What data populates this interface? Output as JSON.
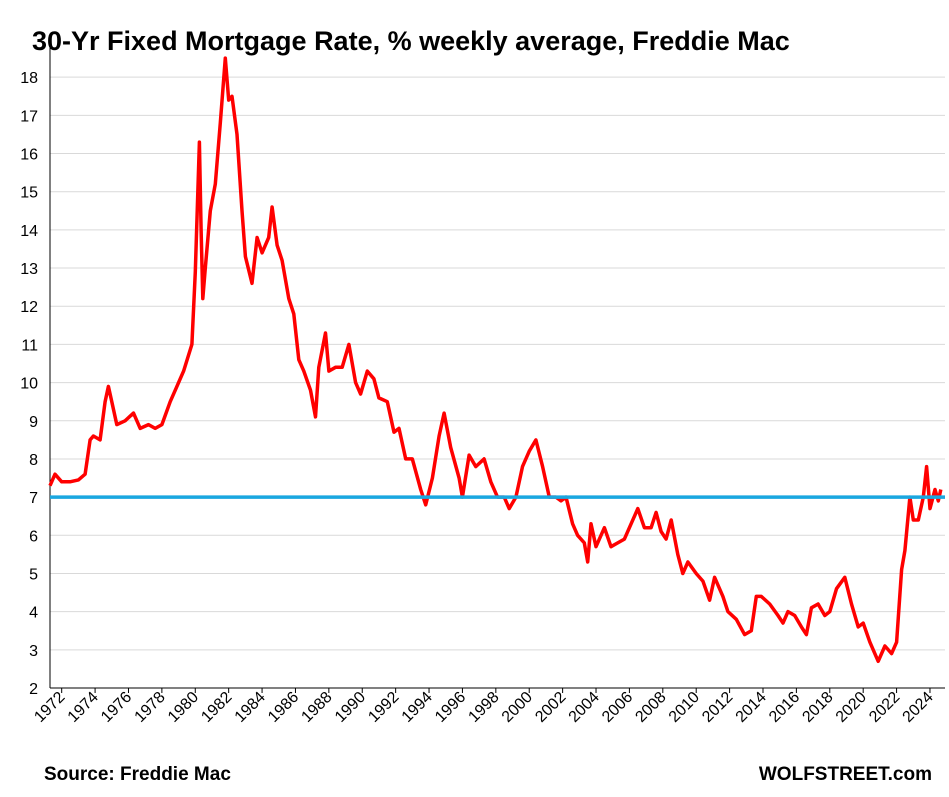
{
  "chart_data": {
    "type": "line",
    "title": "30-Yr Fixed Mortgage Rate, % weekly average, Freddie Mac",
    "source": "Source: Freddie Mac",
    "brand": "WOLFSTREET.com",
    "xlim": [
      1971.3,
      2024.9
    ],
    "xticks": [
      1972,
      1974,
      1976,
      1978,
      1980,
      1982,
      1984,
      1986,
      1988,
      1990,
      1992,
      1994,
      1996,
      1998,
      2000,
      2002,
      2004,
      2006,
      2008,
      2010,
      2012,
      2014,
      2016,
      2018,
      2020,
      2022,
      2024
    ],
    "ylim": [
      2,
      19
    ],
    "yticks": [
      2,
      3,
      4,
      5,
      6,
      7,
      8,
      9,
      10,
      11,
      12,
      13,
      14,
      15,
      16,
      17,
      18
    ],
    "grid": true,
    "reference_line": {
      "value": 7,
      "color": "#1aa7e0"
    },
    "series": [
      {
        "color": "#ff0000",
        "x": [
          1971.3,
          1971.6,
          1972.0,
          1972.5,
          1973.0,
          1973.4,
          1973.7,
          1973.9,
          1974.3,
          1974.6,
          1974.8,
          1975.0,
          1975.3,
          1975.8,
          1976.3,
          1976.7,
          1977.2,
          1977.6,
          1978.0,
          1978.5,
          1978.9,
          1979.3,
          1979.8,
          1980.0,
          1980.25,
          1980.35,
          1980.45,
          1980.6,
          1980.9,
          1981.2,
          1981.5,
          1981.8,
          1982.0,
          1982.2,
          1982.5,
          1982.8,
          1983.0,
          1983.4,
          1983.7,
          1984.0,
          1984.4,
          1984.6,
          1984.9,
          1985.2,
          1985.6,
          1985.9,
          1986.2,
          1986.5,
          1986.9,
          1987.2,
          1987.4,
          1987.8,
          1988.0,
          1988.4,
          1988.8,
          1989.2,
          1989.6,
          1989.9,
          1990.3,
          1990.7,
          1991.0,
          1991.5,
          1991.9,
          1992.2,
          1992.6,
          1993.0,
          1993.5,
          1993.8,
          1994.2,
          1994.6,
          1994.9,
          1995.3,
          1995.8,
          1996.0,
          1996.4,
          1996.8,
          1997.3,
          1997.7,
          1998.1,
          1998.5,
          1998.8,
          1999.2,
          1999.6,
          2000.0,
          2000.4,
          2000.8,
          2001.2,
          2001.6,
          2001.9,
          2002.2,
          2002.6,
          2002.9,
          2003.3,
          2003.5,
          2003.7,
          2004.0,
          2004.5,
          2004.9,
          2005.3,
          2005.7,
          2006.0,
          2006.5,
          2006.9,
          2007.3,
          2007.6,
          2007.9,
          2008.2,
          2008.5,
          2008.9,
          2009.2,
          2009.5,
          2010.0,
          2010.4,
          2010.8,
          2011.1,
          2011.6,
          2011.9,
          2012.4,
          2012.9,
          2013.3,
          2013.6,
          2013.9,
          2014.4,
          2014.9,
          2015.2,
          2015.5,
          2015.9,
          2016.3,
          2016.6,
          2016.9,
          2017.3,
          2017.7,
          2018.0,
          2018.4,
          2018.9,
          2019.3,
          2019.7,
          2020.0,
          2020.4,
          2020.9,
          2021.3,
          2021.7,
          2022.0,
          2022.3,
          2022.5,
          2022.8,
          2023.0,
          2023.3,
          2023.6,
          2023.8,
          2024.0,
          2024.3,
          2024.5,
          2024.65
        ],
        "values": [
          7.3,
          7.6,
          7.4,
          7.4,
          7.45,
          7.6,
          8.5,
          8.6,
          8.5,
          9.5,
          9.9,
          9.5,
          8.9,
          9.0,
          9.2,
          8.8,
          8.9,
          8.8,
          8.9,
          9.5,
          9.9,
          10.3,
          11.0,
          12.9,
          16.3,
          14.0,
          12.2,
          13.0,
          14.5,
          15.2,
          16.8,
          18.5,
          17.4,
          17.5,
          16.5,
          14.5,
          13.3,
          12.6,
          13.8,
          13.4,
          13.8,
          14.6,
          13.6,
          13.2,
          12.2,
          11.8,
          10.6,
          10.3,
          9.8,
          9.1,
          10.4,
          11.3,
          10.3,
          10.4,
          10.4,
          11.0,
          10.0,
          9.7,
          10.3,
          10.1,
          9.6,
          9.5,
          8.7,
          8.8,
          8.0,
          8.0,
          7.2,
          6.8,
          7.5,
          8.6,
          9.2,
          8.3,
          7.5,
          7.0,
          8.1,
          7.8,
          8.0,
          7.4,
          7.0,
          7.0,
          6.7,
          7.0,
          7.8,
          8.2,
          8.5,
          7.8,
          7.0,
          7.0,
          6.9,
          7.0,
          6.3,
          6.0,
          5.8,
          5.3,
          6.3,
          5.7,
          6.2,
          5.7,
          5.8,
          5.9,
          6.2,
          6.7,
          6.2,
          6.2,
          6.6,
          6.1,
          5.9,
          6.4,
          5.5,
          5.0,
          5.3,
          5.0,
          4.8,
          4.3,
          4.9,
          4.4,
          4.0,
          3.8,
          3.4,
          3.5,
          4.4,
          4.4,
          4.2,
          3.9,
          3.7,
          4.0,
          3.9,
          3.6,
          3.4,
          4.1,
          4.2,
          3.9,
          4.0,
          4.6,
          4.9,
          4.2,
          3.6,
          3.7,
          3.2,
          2.7,
          3.1,
          2.9,
          3.2,
          5.1,
          5.6,
          7.0,
          6.4,
          6.4,
          7.0,
          7.8,
          6.7,
          7.2,
          6.9,
          7.2
        ]
      }
    ]
  }
}
